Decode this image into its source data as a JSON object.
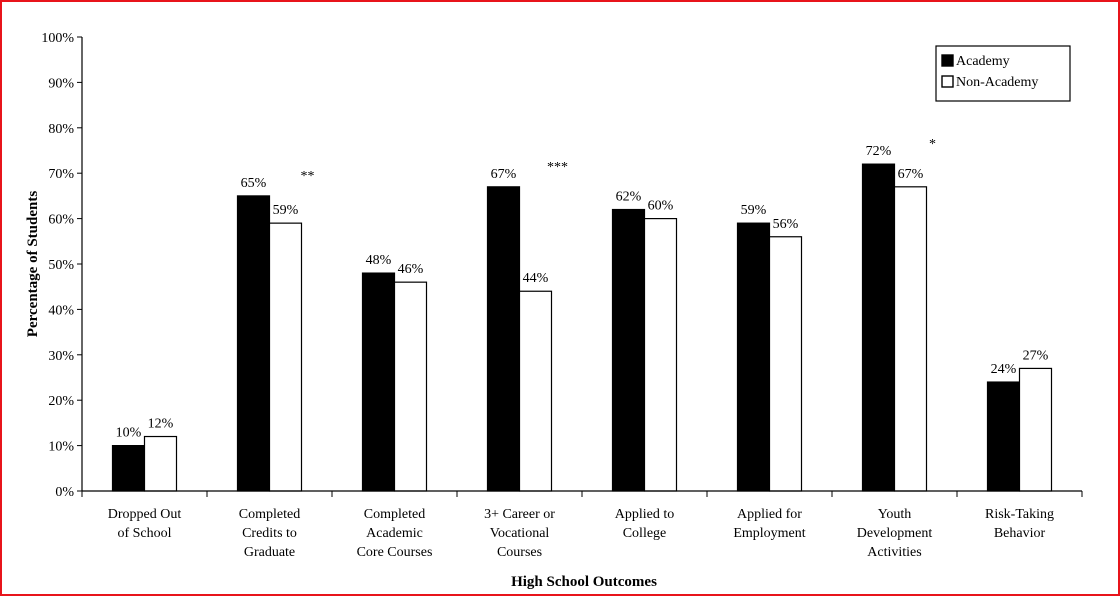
{
  "chart_data": {
    "type": "bar",
    "title": "",
    "xlabel": "High School Outcomes",
    "ylabel": "Percentage of Students",
    "ylim": [
      0,
      100
    ],
    "yticks": [
      0,
      10,
      20,
      30,
      40,
      50,
      60,
      70,
      80,
      90,
      100
    ],
    "ytick_suffix": "%",
    "grid": false,
    "legend_position": "top-right",
    "categories": [
      [
        "Dropped Out",
        "of School"
      ],
      [
        "Completed",
        "Credits to",
        "Graduate"
      ],
      [
        "Completed",
        "Academic",
        "Core Courses"
      ],
      [
        "3+ Career or",
        "Vocational",
        "Courses"
      ],
      [
        "Applied to",
        "College"
      ],
      [
        "Applied for",
        "Employment"
      ],
      [
        "Youth",
        "Development",
        "Activities"
      ],
      [
        "Risk-Taking",
        "Behavior"
      ]
    ],
    "series": [
      {
        "name": "Academy",
        "color": "#000000",
        "values": [
          10,
          65,
          48,
          67,
          62,
          59,
          72,
          24
        ],
        "labels": [
          "10%",
          "65%",
          "48%",
          "67%",
          "62%",
          "59%",
          "72%",
          "24%"
        ]
      },
      {
        "name": "Non-Academy",
        "color": "#ffffff",
        "values": [
          12,
          59,
          46,
          44,
          60,
          56,
          67,
          27
        ],
        "labels": [
          "12%",
          "59%",
          "46%",
          "44%",
          "60%",
          "56%",
          "67%",
          "27%"
        ]
      }
    ],
    "significance": [
      "",
      "**",
      "",
      "***",
      "",
      "",
      "*",
      ""
    ]
  }
}
